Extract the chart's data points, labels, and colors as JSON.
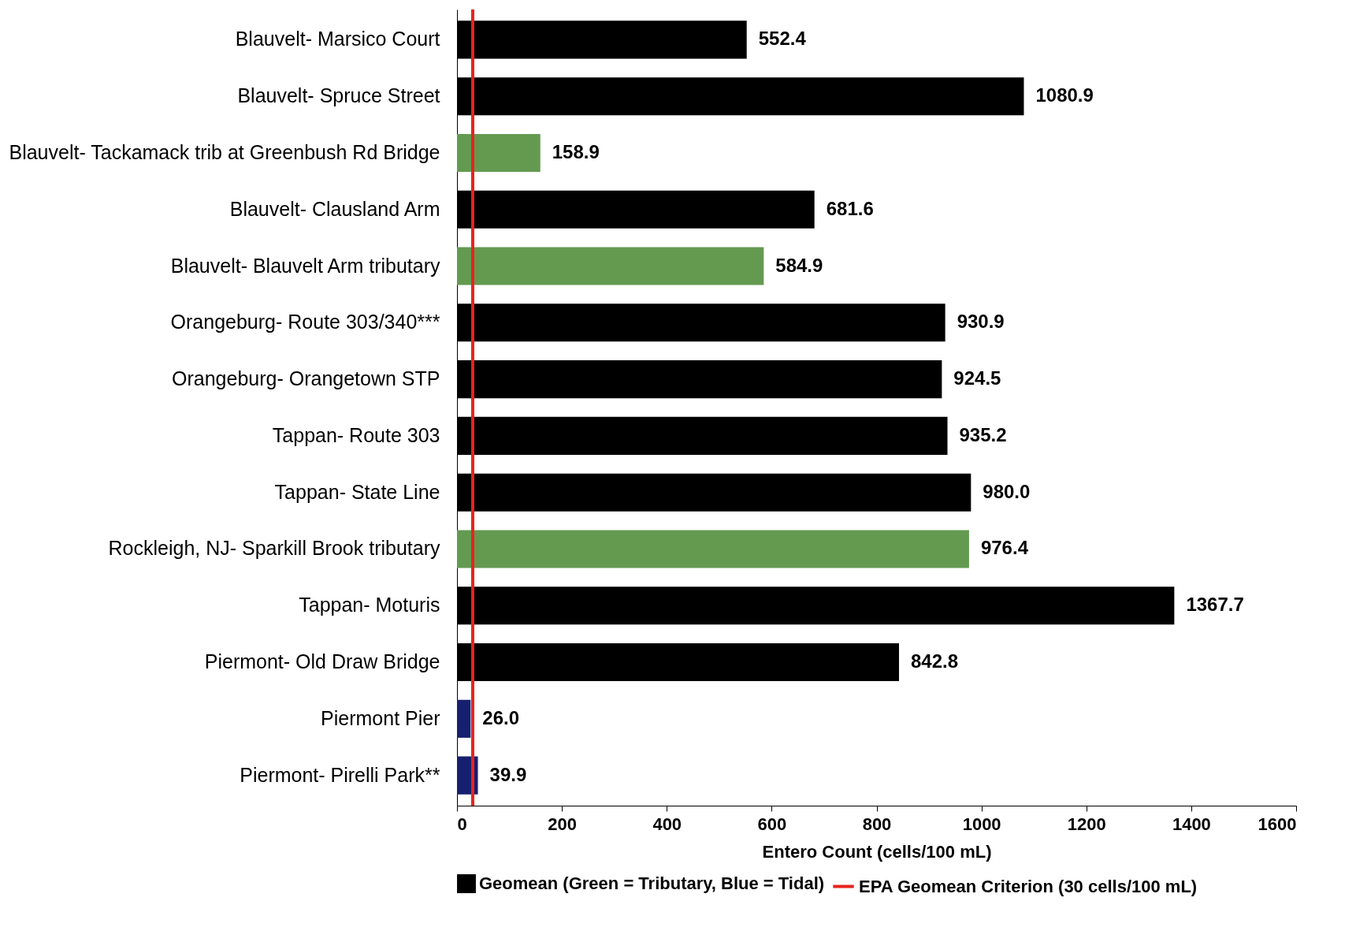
{
  "chart_data": {
    "type": "bar",
    "orientation": "horizontal",
    "xlabel": "Entero Count (cells/100 mL)",
    "categories": [
      "Blauvelt- Marsico Court",
      "Blauvelt- Spruce Street",
      "Blauvelt- Tackamack trib at Greenbush Rd Bridge",
      "Blauvelt- Clausland Arm",
      "Blauvelt- Blauvelt Arm tributary",
      "Orangeburg- Route 303/340***",
      "Orangeburg- Orangetown STP",
      "Tappan- Route 303",
      "Tappan- State Line",
      "Rockleigh, NJ- Sparkill Brook tributary",
      "Tappan- Moturis",
      "Piermont- Old Draw Bridge",
      "Piermont Pier",
      "Piermont- Pirelli Park**"
    ],
    "series": [
      {
        "name": "Geomean (Green = Tributary, Blue = Tidal)",
        "color": "#000000",
        "values": [
          552.4,
          1080.9,
          158.9,
          681.6,
          584.9,
          930.9,
          924.5,
          935.2,
          980.0,
          976.4,
          1367.7,
          842.8,
          26.0,
          39.9
        ],
        "colors": [
          "#000000",
          "#000000",
          "#639a50",
          "#000000",
          "#639a50",
          "#000000",
          "#000000",
          "#000000",
          "#000000",
          "#639a50",
          "#000000",
          "#000000",
          "#16206e",
          "#16206e"
        ],
        "value_labels": [
          "552.4",
          "1080.9",
          "158.9",
          "681.6",
          "584.9",
          "930.9",
          "924.5",
          "935.2",
          "980.0",
          "976.4",
          "1367.7",
          "842.8",
          "26.0",
          "39.9"
        ]
      }
    ],
    "xlim": [
      0,
      1600
    ],
    "xticks": [
      0,
      200,
      400,
      600,
      800,
      1000,
      1200,
      1400,
      1600
    ],
    "ref_lines": [
      {
        "axis": "x",
        "value": 30,
        "label": "EPA Geomean Criterion (30 cells/100 mL)",
        "color": "#e8231e"
      }
    ],
    "legend": "bottom",
    "grid": false
  }
}
